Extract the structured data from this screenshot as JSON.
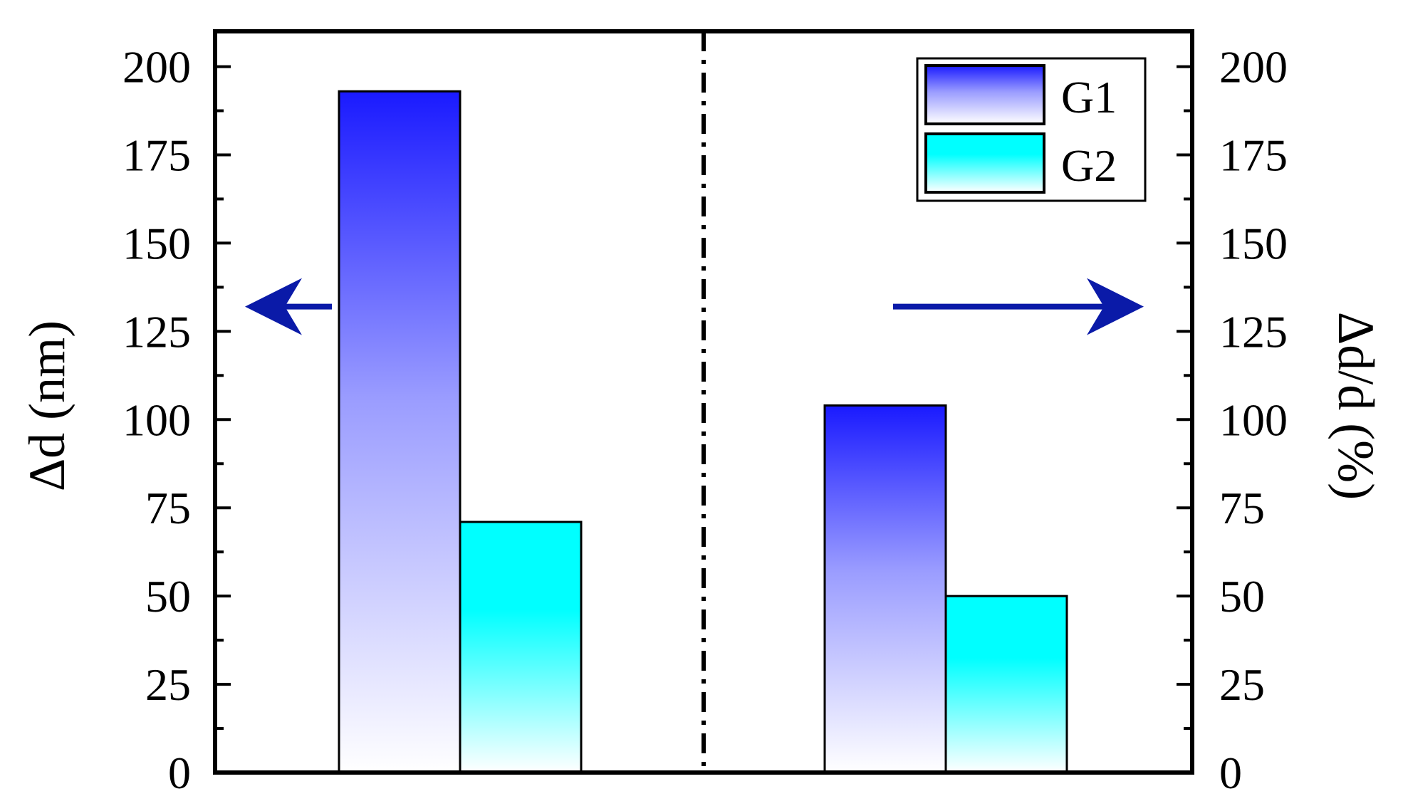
{
  "chart_data": {
    "type": "bar",
    "title": "",
    "xlabel": "",
    "ylabel": "Δd (nm)",
    "ylabel_right": "Δd/d (%)",
    "ylim": [
      0,
      210
    ],
    "ylim_right": [
      0,
      210
    ],
    "yticks": [
      0,
      25,
      50,
      75,
      100,
      125,
      150,
      175,
      200
    ],
    "yticks_right": [
      0,
      25,
      50,
      75,
      100,
      125,
      150,
      175,
      200
    ],
    "grid": false,
    "legend_position": "top-right",
    "groups": [
      {
        "axis": "left",
        "arrow": "left",
        "series": [
          {
            "name": "G1",
            "value": 193
          },
          {
            "name": "G2",
            "value": 71
          }
        ]
      },
      {
        "axis": "right",
        "arrow": "right",
        "series": [
          {
            "name": "G1",
            "value": 104
          },
          {
            "name": "G2",
            "value": 50
          }
        ]
      }
    ],
    "legend": [
      {
        "name": "G1",
        "color": "#1a1aff"
      },
      {
        "name": "G2",
        "color": "#00ffff"
      }
    ],
    "colors": {
      "G1_top": "#1a1aff",
      "G2_top": "#00ffff",
      "arrow": "#0a1aa8",
      "axis": "#000000"
    }
  }
}
